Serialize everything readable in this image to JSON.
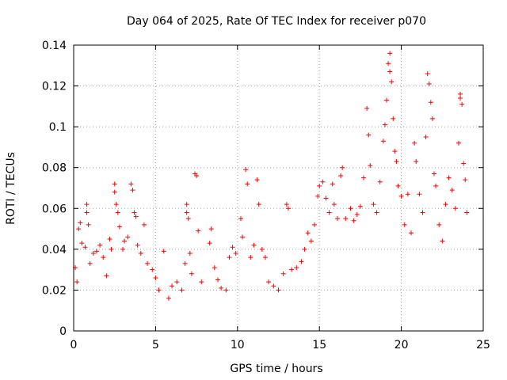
{
  "chart_data": {
    "type": "scatter",
    "title": "Day 064 of 2025, Rate Of TEC Index for receiver p070",
    "xlabel": "GPS time / hours",
    "ylabel": "ROTI / TECUs",
    "xlim": [
      0,
      25
    ],
    "ylim": [
      0,
      0.14
    ],
    "x_ticks": [
      0,
      5,
      10,
      15,
      20,
      25
    ],
    "x_tick_labels": [
      "0",
      "5",
      "10",
      "15",
      "20",
      "25"
    ],
    "y_ticks": [
      0,
      0.02,
      0.04,
      0.06,
      0.08,
      0.1,
      0.12,
      0.14
    ],
    "y_tick_labels": [
      "0",
      "0.02",
      "0.04",
      "0.06",
      "0.08",
      "0.1",
      "0.12",
      "0.14"
    ],
    "grid": true,
    "marker": "+",
    "series_color": "#ff0000",
    "series": [
      {
        "name": "ROTI",
        "points": [
          [
            0.1,
            0.031
          ],
          [
            0.2,
            0.024
          ],
          [
            0.3,
            0.05
          ],
          [
            0.4,
            0.053
          ],
          [
            0.5,
            0.043
          ],
          [
            0.7,
            0.041
          ],
          [
            0.8,
            0.058
          ],
          [
            0.8,
            0.062
          ],
          [
            0.9,
            0.052
          ],
          [
            1.0,
            0.033
          ],
          [
            1.2,
            0.038
          ],
          [
            1.4,
            0.039
          ],
          [
            1.6,
            0.042
          ],
          [
            1.8,
            0.036
          ],
          [
            2.0,
            0.027
          ],
          [
            2.2,
            0.045
          ],
          [
            2.3,
            0.04
          ],
          [
            2.5,
            0.072
          ],
          [
            2.5,
            0.068
          ],
          [
            2.6,
            0.062
          ],
          [
            2.7,
            0.058
          ],
          [
            2.8,
            0.051
          ],
          [
            3.0,
            0.04
          ],
          [
            3.1,
            0.044
          ],
          [
            3.3,
            0.046
          ],
          [
            3.5,
            0.072
          ],
          [
            3.6,
            0.069
          ],
          [
            3.7,
            0.058
          ],
          [
            3.8,
            0.056
          ],
          [
            3.9,
            0.042
          ],
          [
            4.1,
            0.038
          ],
          [
            4.3,
            0.052
          ],
          [
            4.5,
            0.033
          ],
          [
            4.8,
            0.03
          ],
          [
            5.0,
            0.026
          ],
          [
            5.2,
            0.02
          ],
          [
            5.5,
            0.039
          ],
          [
            5.8,
            0.016
          ],
          [
            6.0,
            0.022
          ],
          [
            6.3,
            0.024
          ],
          [
            6.6,
            0.02
          ],
          [
            6.8,
            0.033
          ],
          [
            6.9,
            0.058
          ],
          [
            6.9,
            0.062
          ],
          [
            7.0,
            0.055
          ],
          [
            7.1,
            0.038
          ],
          [
            7.2,
            0.028
          ],
          [
            7.4,
            0.077
          ],
          [
            7.5,
            0.076
          ],
          [
            7.6,
            0.049
          ],
          [
            7.8,
            0.024
          ],
          [
            8.3,
            0.043
          ],
          [
            8.4,
            0.05
          ],
          [
            8.6,
            0.031
          ],
          [
            8.8,
            0.025
          ],
          [
            9.0,
            0.021
          ],
          [
            9.3,
            0.02
          ],
          [
            9.5,
            0.036
          ],
          [
            9.7,
            0.041
          ],
          [
            9.9,
            0.038
          ],
          [
            10.2,
            0.055
          ],
          [
            10.3,
            0.046
          ],
          [
            10.5,
            0.079
          ],
          [
            10.6,
            0.072
          ],
          [
            10.8,
            0.036
          ],
          [
            11.0,
            0.042
          ],
          [
            11.2,
            0.074
          ],
          [
            11.3,
            0.062
          ],
          [
            11.5,
            0.04
          ],
          [
            11.7,
            0.036
          ],
          [
            11.9,
            0.024
          ],
          [
            12.2,
            0.022
          ],
          [
            12.5,
            0.02
          ],
          [
            12.8,
            0.028
          ],
          [
            13.0,
            0.062
          ],
          [
            13.1,
            0.06
          ],
          [
            13.3,
            0.03
          ],
          [
            13.6,
            0.031
          ],
          [
            13.9,
            0.034
          ],
          [
            14.1,
            0.04
          ],
          [
            14.3,
            0.048
          ],
          [
            14.5,
            0.044
          ],
          [
            14.7,
            0.052
          ],
          [
            14.9,
            0.066
          ],
          [
            15.0,
            0.071
          ],
          [
            15.2,
            0.073
          ],
          [
            15.4,
            0.065
          ],
          [
            15.6,
            0.058
          ],
          [
            15.8,
            0.072
          ],
          [
            15.9,
            0.062
          ],
          [
            16.1,
            0.055
          ],
          [
            16.3,
            0.076
          ],
          [
            16.4,
            0.08
          ],
          [
            16.6,
            0.055
          ],
          [
            16.9,
            0.06
          ],
          [
            17.1,
            0.054
          ],
          [
            17.3,
            0.057
          ],
          [
            17.5,
            0.061
          ],
          [
            17.7,
            0.075
          ],
          [
            17.9,
            0.109
          ],
          [
            18.0,
            0.096
          ],
          [
            18.1,
            0.081
          ],
          [
            18.3,
            0.062
          ],
          [
            18.5,
            0.058
          ],
          [
            18.7,
            0.073
          ],
          [
            18.9,
            0.093
          ],
          [
            19.0,
            0.101
          ],
          [
            19.1,
            0.113
          ],
          [
            19.2,
            0.131
          ],
          [
            19.3,
            0.136
          ],
          [
            19.3,
            0.127
          ],
          [
            19.4,
            0.122
          ],
          [
            19.5,
            0.104
          ],
          [
            19.6,
            0.088
          ],
          [
            19.7,
            0.083
          ],
          [
            19.8,
            0.071
          ],
          [
            20.0,
            0.066
          ],
          [
            20.2,
            0.052
          ],
          [
            20.4,
            0.067
          ],
          [
            20.6,
            0.048
          ],
          [
            20.8,
            0.092
          ],
          [
            20.9,
            0.083
          ],
          [
            21.1,
            0.067
          ],
          [
            21.3,
            0.058
          ],
          [
            21.5,
            0.095
          ],
          [
            21.6,
            0.126
          ],
          [
            21.7,
            0.121
          ],
          [
            21.8,
            0.112
          ],
          [
            21.9,
            0.104
          ],
          [
            22.0,
            0.077
          ],
          [
            22.1,
            0.071
          ],
          [
            22.3,
            0.052
          ],
          [
            22.5,
            0.044
          ],
          [
            22.7,
            0.062
          ],
          [
            22.9,
            0.075
          ],
          [
            23.1,
            0.069
          ],
          [
            23.3,
            0.06
          ],
          [
            23.5,
            0.092
          ],
          [
            23.6,
            0.116
          ],
          [
            23.6,
            0.114
          ],
          [
            23.7,
            0.111
          ],
          [
            23.8,
            0.082
          ],
          [
            23.9,
            0.074
          ],
          [
            24.0,
            0.058
          ]
        ]
      }
    ]
  }
}
